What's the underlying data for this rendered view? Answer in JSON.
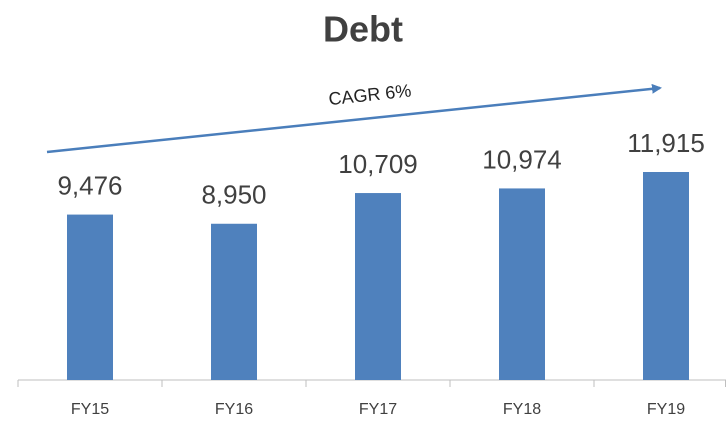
{
  "chart_data": {
    "type": "bar",
    "title": "Debt",
    "annotation": "CAGR 6%",
    "categories": [
      "FY15",
      "FY16",
      "FY17",
      "FY18",
      "FY19"
    ],
    "values": [
      9476,
      8950,
      10709,
      10974,
      11915
    ],
    "value_labels": [
      "9,476",
      "8,950",
      "10,709",
      "10,974",
      "11,915"
    ],
    "color": "#4f81bd"
  }
}
